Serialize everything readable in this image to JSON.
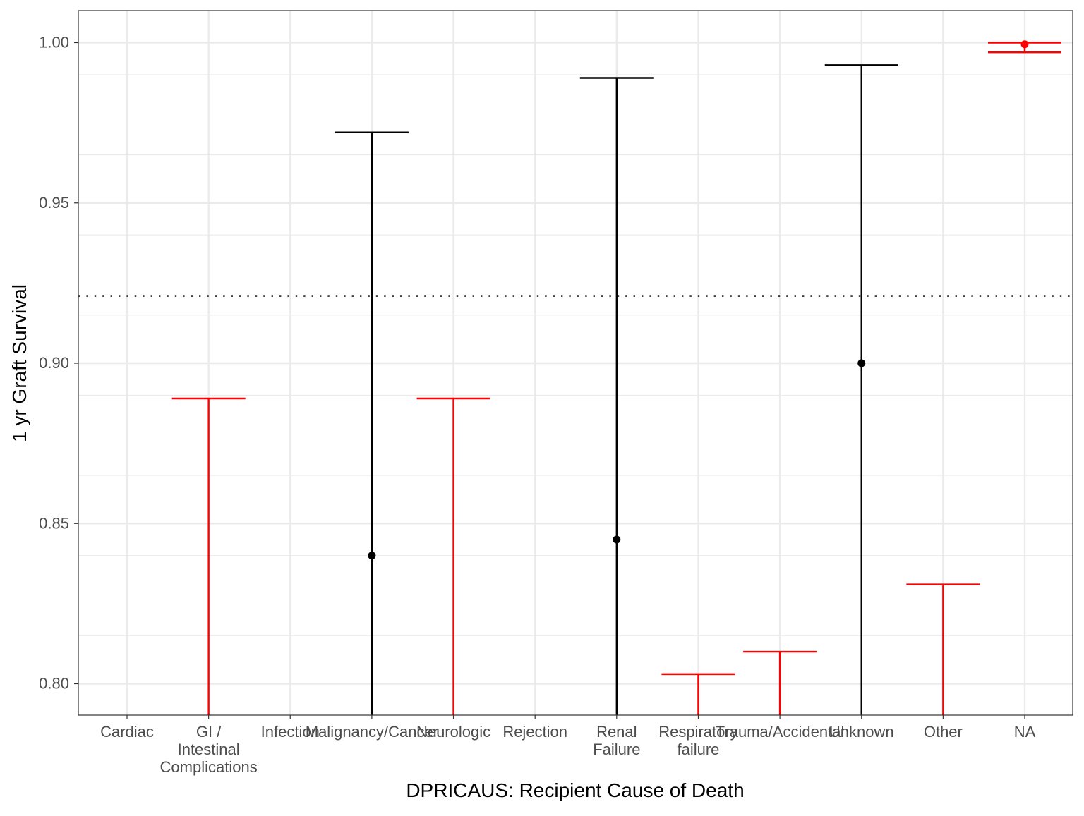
{
  "chart_data": {
    "type": "errorbar",
    "xlabel": "DPRICAUS: Recipient Cause of Death",
    "ylabel": "1 yr Graft Survival",
    "ylim": [
      0.79,
      1.01
    ],
    "yticks": [
      "0.80",
      "0.85",
      "0.90",
      "0.95",
      "1.00"
    ],
    "ytick_values": [
      0.8,
      0.85,
      0.9,
      0.95,
      1.0
    ],
    "grid": true,
    "reference_line": {
      "y": 0.921,
      "style": "dotted",
      "color": "#000000"
    },
    "categories": [
      {
        "label": "Cardiac",
        "estimate": null,
        "lower": null,
        "upper": null,
        "color": null
      },
      {
        "label": "GI /\nIntestinal\nComplications",
        "estimate": null,
        "lower": 0.79,
        "upper": 0.889,
        "color": "#ff0000"
      },
      {
        "label": "Infection",
        "estimate": null,
        "lower": null,
        "upper": null,
        "color": null
      },
      {
        "label": "Malignancy/Cancer",
        "estimate": 0.84,
        "lower": 0.79,
        "upper": 0.972,
        "color": "#000000"
      },
      {
        "label": "Neurologic",
        "estimate": null,
        "lower": 0.79,
        "upper": 0.889,
        "color": "#ff0000"
      },
      {
        "label": "Rejection",
        "estimate": null,
        "lower": null,
        "upper": null,
        "color": null
      },
      {
        "label": "Renal\nFailure",
        "estimate": 0.845,
        "lower": 0.79,
        "upper": 0.989,
        "color": "#000000"
      },
      {
        "label": "Respiratory\nfailure",
        "estimate": null,
        "lower": 0.79,
        "upper": 0.803,
        "color": "#ff0000"
      },
      {
        "label": "Trauma/Accidental",
        "estimate": null,
        "lower": 0.79,
        "upper": 0.81,
        "color": "#ff0000"
      },
      {
        "label": "Unknown",
        "estimate": 0.9,
        "lower": 0.79,
        "upper": 0.993,
        "color": "#000000"
      },
      {
        "label": "Other",
        "estimate": null,
        "lower": 0.79,
        "upper": 0.831,
        "color": "#ff0000"
      },
      {
        "label": "NA",
        "estimate": 0.9995,
        "lower": 0.997,
        "upper": 1.0,
        "color": "#ff0000"
      }
    ]
  }
}
